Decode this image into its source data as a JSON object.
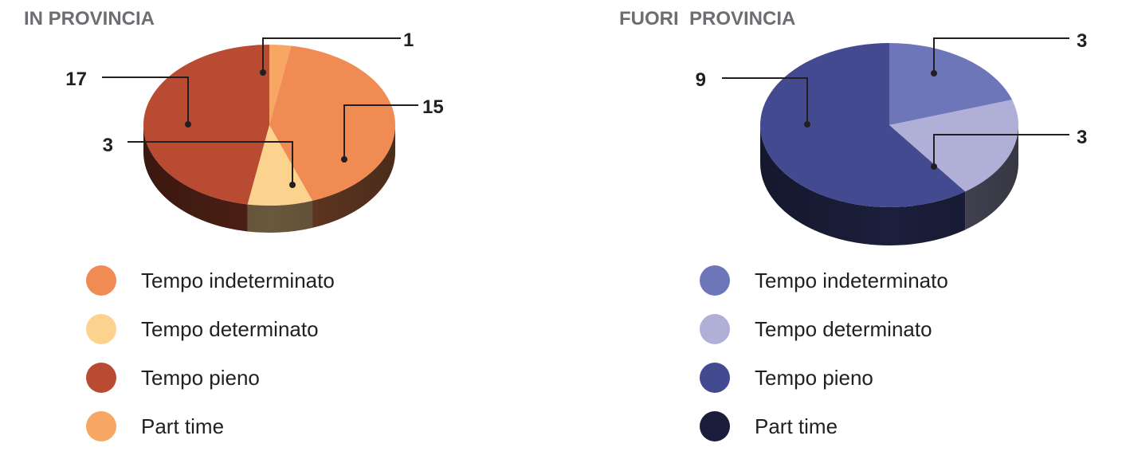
{
  "chart_data": [
    {
      "type": "pie",
      "title": "IN PROVINCIA",
      "categories": [
        "Tempo indeterminato",
        "Tempo determinato",
        "Tempo pieno",
        "Part time"
      ],
      "colors": [
        "#f08b54",
        "#fbd38f",
        "#b94b32",
        "#f7a663"
      ],
      "legend_position": "bottom",
      "slices": [
        {
          "category": "Part time",
          "value": 1,
          "color": "#f7a663"
        },
        {
          "category": "Tempo indeterminato",
          "value": 15,
          "color": "#f08b54"
        },
        {
          "category": "Tempo determinato",
          "value": 3,
          "color": "#fbd38f"
        },
        {
          "category": "Tempo pieno",
          "value": 17,
          "color": "#b94b32"
        }
      ]
    },
    {
      "type": "pie",
      "title": "FUORI  PROVINCIA",
      "categories": [
        "Tempo indeterminato",
        "Tempo determinato",
        "Tempo pieno",
        "Part time"
      ],
      "colors": [
        "#6e76ba",
        "#b0afd8",
        "#434a8f",
        "#1b1d3a"
      ],
      "legend_position": "bottom",
      "slices": [
        {
          "category": "Tempo indeterminato",
          "value": 3,
          "color": "#6e76ba"
        },
        {
          "category": "Tempo determinato",
          "value": 3,
          "color": "#b0afd8"
        },
        {
          "category": "Tempo pieno",
          "value": 9,
          "color": "#434a8f"
        }
      ]
    }
  ]
}
